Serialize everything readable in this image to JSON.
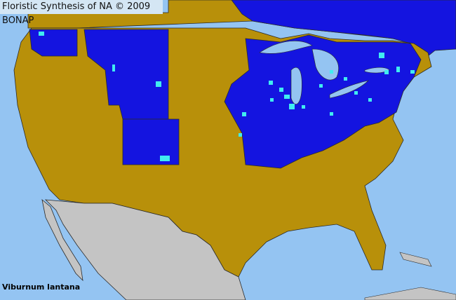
{
  "header": {
    "title": "Floristic Synthesis of NA © 2009 BONAP"
  },
  "map": {
    "species": "Viburnum lantana",
    "colors": {
      "water": "#94c4f2",
      "land_absent": "#b8900a",
      "state_present": "#1414e0",
      "county_present": "#40ecf0",
      "outside_region": "#c4c4c4",
      "borders": "#2a2a2a"
    }
  }
}
